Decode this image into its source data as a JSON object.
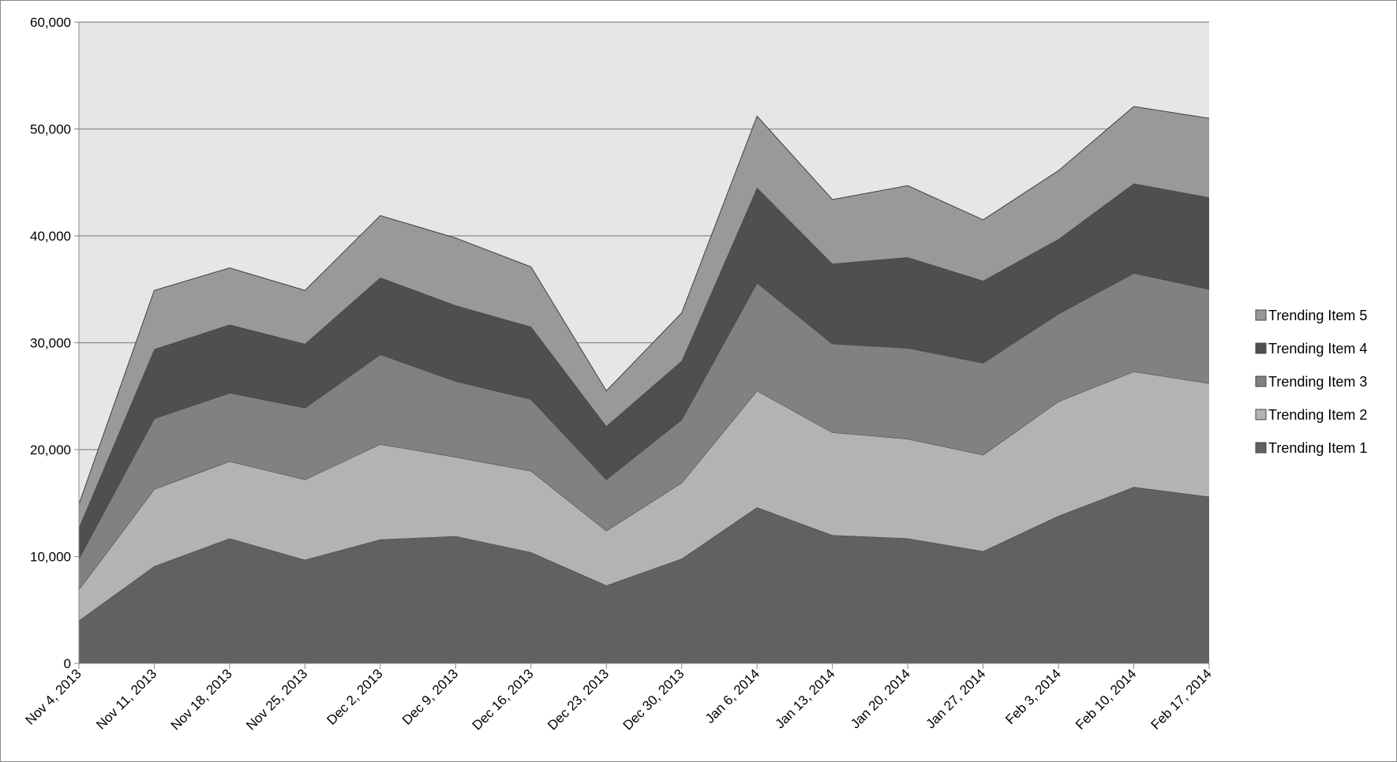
{
  "chart_data": {
    "type": "area",
    "stacked": true,
    "title": "",
    "xlabel": "",
    "ylabel": "",
    "ylim": [
      0,
      60000
    ],
    "yticks": [
      "0",
      "10,000",
      "20,000",
      "30,000",
      "40,000",
      "50,000",
      "60,000"
    ],
    "grid": true,
    "legend_position": "right",
    "categories": [
      "Nov 4, 2013",
      "Nov 11, 2013",
      "Nov 18, 2013",
      "Nov 25, 2013",
      "Dec 2, 2013",
      "Dec 9, 2013",
      "Dec 16, 2013",
      "Dec 23, 2013",
      "Dec 30, 2013",
      "Jan 6, 2014",
      "Jan 13, 2014",
      "Jan 20, 2014",
      "Jan 27, 2014",
      "Feb 3, 2014",
      "Feb 10, 2014",
      "Feb 17, 2014"
    ],
    "series": [
      {
        "name": "Trending Item 1",
        "color": "#616161",
        "values": [
          4000,
          9100,
          11700,
          9700,
          11600,
          11900,
          10400,
          7300,
          9800,
          14600,
          12000,
          11700,
          10500,
          13800,
          16500,
          15600
        ]
      },
      {
        "name": "Trending Item 2",
        "color": "#b3b3b3",
        "values": [
          2900,
          7200,
          7200,
          7500,
          8900,
          7400,
          7600,
          5100,
          7100,
          10900,
          9600,
          9300,
          9000,
          10700,
          10800,
          10600
        ]
      },
      {
        "name": "Trending Item 3",
        "color": "#818181",
        "values": [
          2900,
          6600,
          6400,
          6700,
          8400,
          7100,
          6700,
          4800,
          5900,
          10100,
          8300,
          8500,
          8600,
          8200,
          9200,
          8800
        ]
      },
      {
        "name": "Trending Item 4",
        "color": "#4f4f4f",
        "values": [
          2900,
          6500,
          6400,
          6000,
          7200,
          7100,
          6800,
          5000,
          5500,
          8900,
          7500,
          8500,
          7700,
          7000,
          8400,
          8600
        ]
      },
      {
        "name": "Trending Item 5",
        "color": "#999999",
        "values": [
          2200,
          5500,
          5300,
          5000,
          5800,
          6300,
          5600,
          3300,
          4500,
          6700,
          6000,
          6700,
          5700,
          6400,
          7200,
          7400
        ]
      }
    ],
    "plot_background": "#e6e6e6"
  }
}
